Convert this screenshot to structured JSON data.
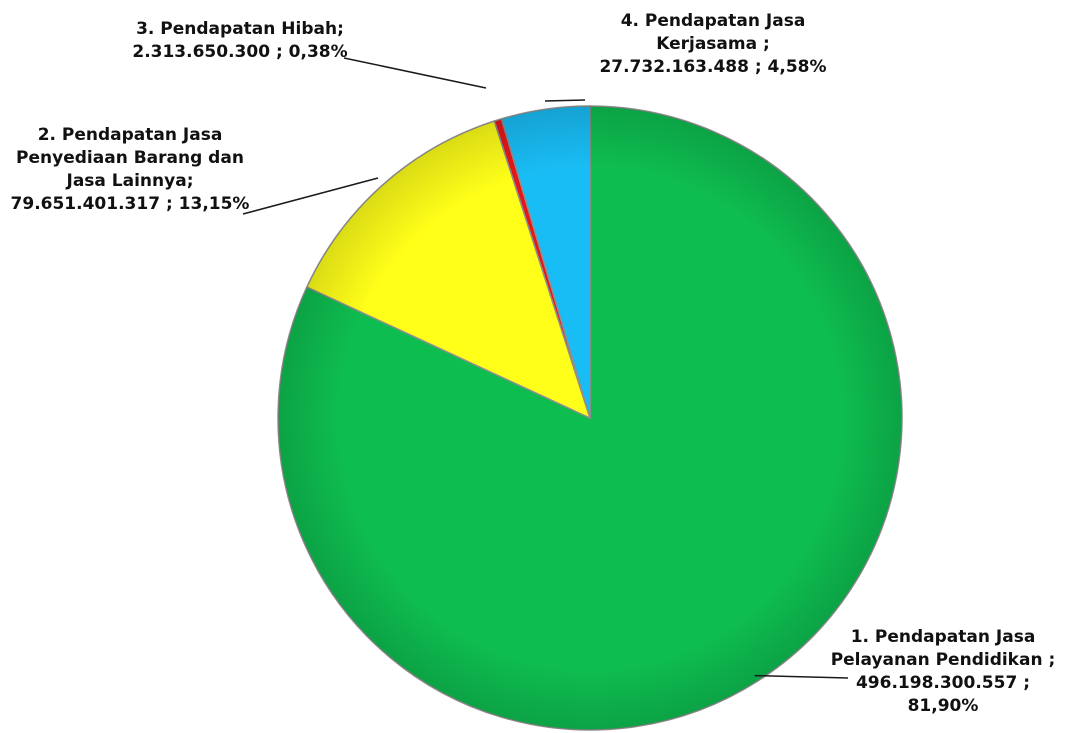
{
  "chart_data": {
    "type": "pie",
    "slices": [
      {
        "label": [
          "1. Pendapatan Jasa",
          "Pelayanan Pendidikan ;",
          "496.198.300.557   ;",
          "81,90%"
        ],
        "value": 496198300557,
        "percent": 81.9,
        "color": "#0ebd50"
      },
      {
        "label": [
          "2. Pendapatan Jasa",
          "Penyediaan Barang dan",
          "Jasa Lainnya;",
          "79.651.401.317   ; 13,15%"
        ],
        "value": 79651401317,
        "percent": 13.15,
        "color": "#ffff19"
      },
      {
        "label": [
          "3. Pendapatan Hibah;",
          "2.313.650.300   ; 0,38%"
        ],
        "value": 2313650300,
        "percent": 0.38,
        "color": "#e6171b"
      },
      {
        "label": [
          "4. Pendapatan Jasa",
          "Kerjasama ;",
          "27.732.163.488   ; 4,58%"
        ],
        "value": 27732163488,
        "percent": 4.58,
        "color": "#19bdf5"
      }
    ],
    "start_angle": "12 o'clock",
    "direction": "clockwise",
    "legend": "none (data labels with leader lines)"
  }
}
